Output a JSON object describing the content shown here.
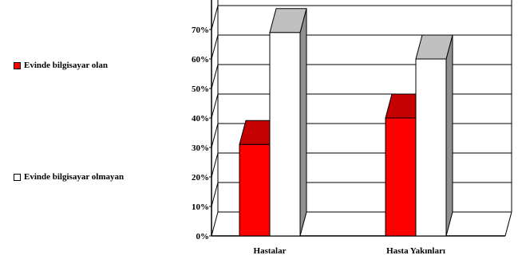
{
  "chart_data": {
    "type": "bar",
    "categories": [
      "Hastalar",
      "Hasta Yakınları"
    ],
    "series": [
      {
        "name": "Evinde bilgisayar olan",
        "values": [
          31,
          40
        ],
        "color": "#ff0000",
        "top_color": "#c40000",
        "side_color": "#a00000"
      },
      {
        "name": "Evinde bilgisayar olmayan",
        "values": [
          69,
          60
        ],
        "color": "#ffffff",
        "top_color": "#c0c0c0",
        "side_color": "#909090"
      }
    ],
    "yticks": [
      "0%",
      "10%",
      "20%",
      "30%",
      "40%",
      "50%",
      "60%",
      "70%"
    ],
    "ylim": [
      0,
      80
    ],
    "grid": true,
    "legend_position": "left"
  }
}
